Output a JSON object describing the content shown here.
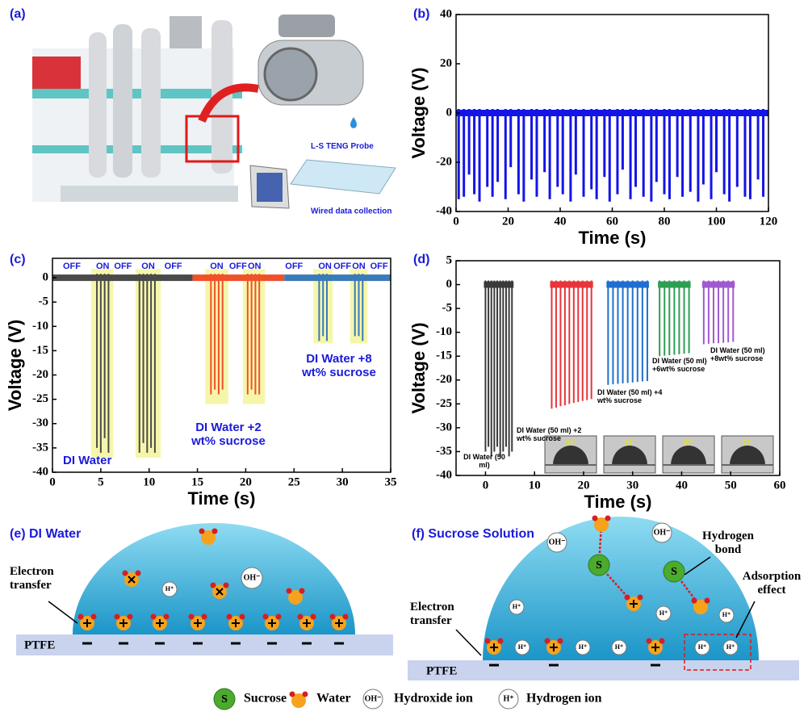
{
  "chart_data": [
    {
      "type": "spike",
      "title": "(b)",
      "xlabel": "Time (s)",
      "ylabel": "Voltage (V)",
      "color": "#1414e6",
      "xlim": [
        0,
        120
      ],
      "ylim": [
        -40,
        40
      ],
      "xticks": [
        0,
        20,
        40,
        60,
        80,
        100,
        120
      ],
      "yticks": [
        -40,
        -20,
        0,
        20,
        40
      ],
      "x": [
        1,
        3,
        5,
        7,
        9,
        12,
        14,
        16,
        19,
        21,
        24,
        26,
        29,
        31,
        34,
        36,
        39,
        41,
        44,
        46,
        49,
        52,
        54,
        57,
        59,
        62,
        64,
        67,
        69,
        72,
        75,
        77,
        80,
        82,
        85,
        87,
        90,
        93,
        95,
        98,
        100,
        103,
        105,
        108,
        111,
        113,
        116,
        118
      ],
      "values": [
        -35,
        -34,
        -25,
        -33,
        -36,
        -30,
        -34,
        -28,
        -35,
        -22,
        -33,
        -36,
        -27,
        -34,
        -24,
        -35,
        -30,
        -33,
        -36,
        -25,
        -34,
        -31,
        -35,
        -26,
        -36,
        -33,
        -23,
        -35,
        -30,
        -34,
        -36,
        -28,
        -33,
        -35,
        -26,
        -34,
        -32,
        -36,
        -29,
        -35,
        -24,
        -33,
        -36,
        -30,
        -34,
        -35,
        -27,
        -34
      ]
    },
    {
      "type": "spike",
      "title": "(c)",
      "xlabel": "Time (s)",
      "ylabel": "Voltage (V)",
      "xlim": [
        0,
        35
      ],
      "ylim": [
        -40,
        4
      ],
      "xticks": [
        0,
        5,
        10,
        15,
        20,
        25,
        30,
        35
      ],
      "yticks": [
        0,
        -5,
        -10,
        -15,
        -20,
        -25,
        -30,
        -35,
        -40
      ],
      "series": [
        {
          "name": "DI Water",
          "color": "#4a4a4a",
          "xrange": [
            0,
            14.5
          ],
          "x": [
            4.6,
            5.0,
            5.4,
            5.8,
            9.0,
            9.4,
            9.8,
            10.2,
            10.6
          ],
          "values": [
            -35,
            -36,
            -33,
            -36,
            -36,
            -34,
            -36,
            -35,
            -36
          ]
        },
        {
          "name": "DI Water +2 wt% sucrose",
          "color": "#f0502a",
          "xrange": [
            14.5,
            24
          ],
          "x": [
            16.4,
            16.8,
            17.2,
            17.6,
            20.2,
            20.6,
            21.0,
            21.4
          ],
          "values": [
            -24,
            -23,
            -24,
            -23,
            -24,
            -23,
            -24,
            -24
          ]
        },
        {
          "name": "DI Water +8 wt% sucrose",
          "color": "#3a7ab8",
          "xrange": [
            24,
            35
          ],
          "x": [
            27.6,
            28.0,
            28.4,
            31.3,
            31.7,
            32.1
          ],
          "values": [
            -13,
            -12,
            -13,
            -12,
            -12,
            -13
          ]
        }
      ],
      "shaded_regions": [
        {
          "x": [
            4,
            6.3
          ],
          "y": [
            -37,
            1.8
          ]
        },
        {
          "x": [
            8.6,
            11.2
          ],
          "y": [
            -37,
            1.8
          ]
        },
        {
          "x": [
            15.8,
            18.2
          ],
          "y": [
            -26,
            1.8
          ]
        },
        {
          "x": [
            19.7,
            22.0
          ],
          "y": [
            -26,
            1.8
          ]
        },
        {
          "x": [
            27,
            29
          ],
          "y": [
            -13.5,
            1.8
          ]
        },
        {
          "x": [
            30.8,
            32.6
          ],
          "y": [
            -13.5,
            1.8
          ]
        }
      ],
      "state_labels": [
        {
          "text": "OFF",
          "x": 2
        },
        {
          "text": "ON",
          "x": 5.2
        },
        {
          "text": "OFF",
          "x": 7.3
        },
        {
          "text": "ON",
          "x": 9.9
        },
        {
          "text": "OFF",
          "x": 12.5
        },
        {
          "text": "ON",
          "x": 17
        },
        {
          "text": "OFF",
          "x": 19.2
        },
        {
          "text": "ON",
          "x": 20.9
        },
        {
          "text": "OFF",
          "x": 25
        },
        {
          "text": "ON",
          "x": 28.2
        },
        {
          "text": "OFF",
          "x": 30
        },
        {
          "text": "ON",
          "x": 31.7
        },
        {
          "text": "OFF",
          "x": 33.8
        }
      ]
    },
    {
      "type": "spike",
      "title": "(d)",
      "xlabel": "Time (s)",
      "ylabel": "Voltage (V)",
      "xlim": [
        -6,
        60
      ],
      "ylim": [
        -40,
        5
      ],
      "xticks": [
        0,
        10,
        20,
        30,
        40,
        50,
        60
      ],
      "yticks": [
        5,
        0,
        -5,
        -10,
        -15,
        -20,
        -25,
        -30,
        -35,
        -40
      ],
      "series": [
        {
          "name": "DI Water (50 ml)",
          "color": "#3a3a3a",
          "x": [
            0,
            0.6,
            1.2,
            1.8,
            2.4,
            3.0,
            3.6,
            4.2,
            4.8,
            5.4
          ],
          "values": [
            -35,
            -34,
            -36,
            -35,
            -34,
            -36,
            -35,
            -34,
            -36,
            -35
          ]
        },
        {
          "name": "DI Water (50 ml) +2 wt% sucrose",
          "color": "#e8343a",
          "x": [
            13.5,
            14.4,
            15.3,
            16.2,
            17.1,
            18.0,
            18.9,
            19.8,
            20.7,
            21.6
          ],
          "values": [
            -26,
            -25.8,
            -25.5,
            -25.3,
            -25,
            -24.8,
            -24.6,
            -24.4,
            -24.2,
            -24
          ]
        },
        {
          "name": "DI Water (50 ml) +4 wt% sucrose",
          "color": "#1e6fd0",
          "x": [
            25,
            26,
            27,
            28,
            29,
            30,
            31,
            32,
            33
          ],
          "values": [
            -21,
            -20.9,
            -20.8,
            -20.7,
            -20.6,
            -20.5,
            -20.4,
            -20.3,
            -20.2
          ]
        },
        {
          "name": "DI Water (50 ml) +6wt% sucrose",
          "color": "#2e9e52",
          "x": [
            35.5,
            36.5,
            37.5,
            38.5,
            39.5,
            40.5,
            41.5
          ],
          "values": [
            -15,
            -14.9,
            -14.8,
            -14.7,
            -14.6,
            -14.5,
            -14.4
          ]
        },
        {
          "name": "DI Water (50 ml) +8wt% sucrose",
          "color": "#a05ad0",
          "x": [
            44.5,
            45.5,
            46.5,
            47.5,
            48.5,
            49.5,
            50.5
          ],
          "values": [
            -12.5,
            -12.4,
            -12.3,
            -12.3,
            -12.2,
            -12.1,
            -12
          ]
        }
      ],
      "contact_angles": [
        "94°",
        "93°",
        "97°",
        "97°"
      ]
    }
  ],
  "panel_a": {
    "title": "(a)",
    "probe_label": "L-S TENG Probe",
    "collection_label": "Wired data collection"
  },
  "panel_e": {
    "title": "(e) DI Water",
    "electron_transfer": "Electron transfer",
    "substrate": "PTFE"
  },
  "panel_f": {
    "title": "(f) Sucrose Solution",
    "electron_transfer": "Electron transfer",
    "substrate": "PTFE",
    "hydrogen_bond": "Hydrogen bond",
    "adsorption": "Adsorption effect"
  },
  "legend": {
    "sucrose_symbol": "S",
    "sucrose": "Sucrose",
    "water": "Water",
    "hydroxide_symbol": "OH⁻",
    "hydroxide": "Hydroxide ion",
    "hydrogen_symbol": "H⁺",
    "hydrogen": "Hydrogen ion"
  }
}
